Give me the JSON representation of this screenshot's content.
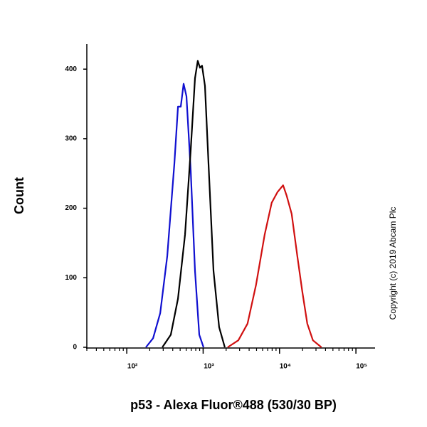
{
  "chart_data": {
    "type": "line",
    "xlabel": "p53 - Alexa Fluor®488 (530/30 BP)",
    "ylabel": "Count",
    "annotation": "Copyright (c) 2019 Abcam Plc",
    "xscale": "log",
    "xlim": [
      30,
      178000
    ],
    "ylim": [
      0,
      436
    ],
    "xticks": [
      {
        "value": 100,
        "label": "10²"
      },
      {
        "value": 1000,
        "label": "10³"
      },
      {
        "value": 10000,
        "label": "10⁴"
      },
      {
        "value": 100000,
        "label": "10⁵"
      }
    ],
    "yticks": [
      0,
      100,
      200,
      300,
      400
    ],
    "series": [
      {
        "color": "#1010d0",
        "x": [
          178,
          221,
          274,
          339,
          420,
          468,
          509,
          555,
          604,
          687,
          782,
          889,
          1011
        ],
        "values": [
          0,
          13,
          49,
          131,
          264,
          346,
          346,
          379,
          361,
          254,
          110,
          18,
          0
        ]
      },
      {
        "color": "#000000",
        "x": [
          292,
          377,
          468,
          579,
          687,
          782,
          851,
          908,
          968,
          1055,
          1175,
          1365,
          1620,
          1922
        ],
        "values": [
          0,
          18,
          70,
          162,
          284,
          387,
          412,
          402,
          405,
          376,
          264,
          110,
          29,
          0
        ]
      },
      {
        "color": "#d01010",
        "x": [
          2094,
          2886,
          3811,
          4931,
          6383,
          7907,
          9378,
          11130,
          12390,
          14390,
          17100,
          19860,
          23070,
          27360,
          35400
        ],
        "values": [
          0,
          10,
          34,
          90,
          162,
          208,
          223,
          233,
          218,
          192,
          131,
          80,
          34,
          10,
          0
        ]
      }
    ]
  }
}
